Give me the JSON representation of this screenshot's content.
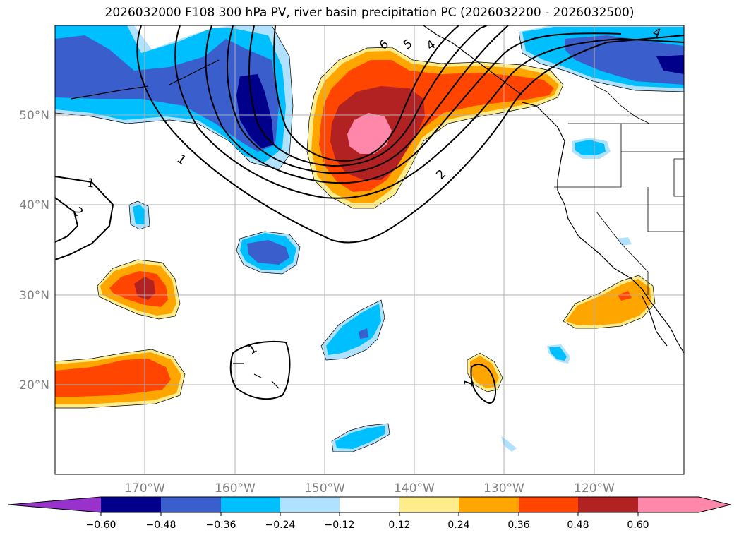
{
  "title": "2026032000 F108 300 hPa PV, river basin precipitation PC (2026032200 - 2026032500)",
  "map": {
    "lon_labels": [
      "170°W",
      "160°W",
      "150°W",
      "140°W",
      "130°W",
      "120°W"
    ],
    "lat_labels": [
      "50°N",
      "40°N",
      "30°N",
      "20°N"
    ],
    "contour_labels": [
      "6",
      "5",
      "4",
      "2",
      "1",
      "1",
      "2",
      "1",
      "1",
      "4"
    ]
  },
  "colors": {
    "c_neg_ext": "#9932cc",
    "c_n060": "#00008b",
    "c_n048": "#3a5fcd",
    "c_n036": "#00bfff",
    "c_n024": "#b0e2ff",
    "c_zero": "#ffffff",
    "c_p012": "#ffec8b",
    "c_p024": "#ffa500",
    "c_p036": "#ff4500",
    "c_p048": "#b22222",
    "c_p060": "#ff88aa"
  },
  "colorbar": {
    "ticks": [
      "−0.60",
      "−0.48",
      "−0.36",
      "−0.24",
      "−0.12",
      "0.12",
      "0.24",
      "0.36",
      "0.48",
      "0.60"
    ]
  }
}
